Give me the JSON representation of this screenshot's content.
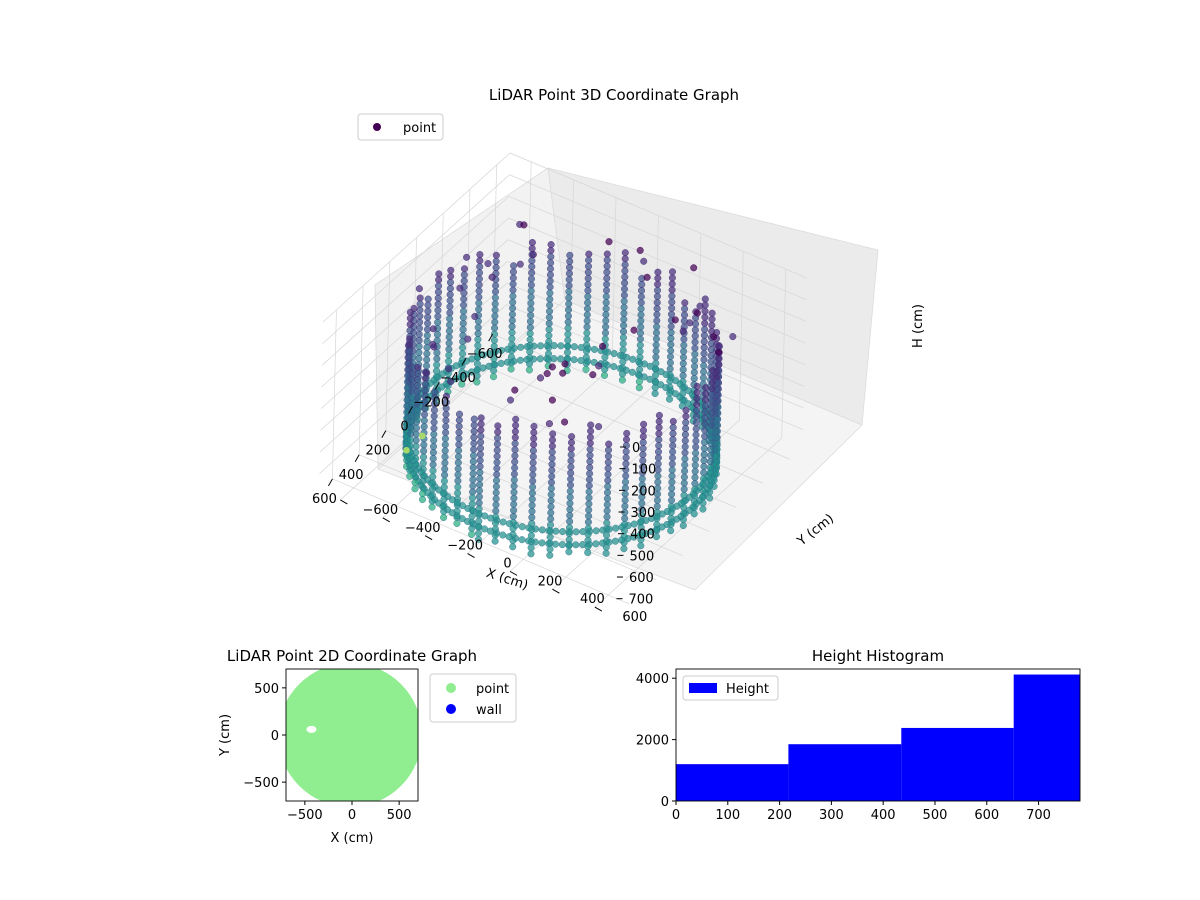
{
  "colors": {
    "viridis_dark": "#440154",
    "viridis_mid": "#3b528b",
    "viridis_teal": "#21918c",
    "viridis_light": "#5ec962",
    "point_2d": "#90ee90",
    "wall_2d": "#0000ff",
    "hist_bar": "#0000ff",
    "pane": "#f2f2f2",
    "grid": "#d0d0d0"
  },
  "chart_data": [
    {
      "type": "scatter",
      "title": "LiDAR Point 3D Coordinate Graph",
      "xlabel": "X (cm)",
      "ylabel": "Y (cm)",
      "zlabel": "H (cm)",
      "x_ticks": [
        "−600",
        "−400",
        "−200",
        "0",
        "200",
        "400",
        "600"
      ],
      "y_ticks": [
        "−600",
        "−400",
        "−200",
        "0",
        "200",
        "400",
        "600"
      ],
      "z_ticks": [
        "0",
        "100",
        "200",
        "300",
        "400",
        "500",
        "600",
        "700"
      ],
      "xlim": [
        -700,
        700
      ],
      "ylim": [
        -700,
        700
      ],
      "zlim": [
        0,
        780
      ],
      "z_axis_inverted": true,
      "colormap": "viridis",
      "legend": {
        "position": "top-left",
        "entries": [
          "point"
        ]
      },
      "series": [
        {
          "name": "point",
          "description_values": {
            "ring_radius_cm": 620,
            "max_height_cm": 780
          }
        }
      ]
    },
    {
      "type": "scatter",
      "title": "LiDAR Point 2D Coordinate Graph",
      "xlabel": "X (cm)",
      "ylabel": "Y (cm)",
      "x_ticks": [
        "−500",
        "0",
        "500"
      ],
      "y_ticks": [
        "500",
        "0",
        "−500"
      ],
      "xlim": [
        -700,
        700
      ],
      "ylim": [
        -700,
        700
      ],
      "legend": {
        "position": "outside-right",
        "entries": [
          "point",
          "wall"
        ]
      },
      "series": [
        {
          "name": "point",
          "color": "#90ee90"
        },
        {
          "name": "wall",
          "color": "#0000ff"
        }
      ]
    },
    {
      "type": "bar",
      "title": "Height Histogram",
      "legend": {
        "position": "top-left",
        "entries": [
          "Height"
        ]
      },
      "bin_edges": [
        0,
        217,
        435,
        652,
        780
      ],
      "values": [
        1200,
        1850,
        2380,
        4120
      ],
      "xlim": [
        0,
        780
      ],
      "ylim": [
        0,
        4300
      ],
      "x_ticks": [
        0,
        100,
        200,
        300,
        400,
        500,
        600,
        700
      ],
      "y_ticks": [
        0,
        2000,
        4000
      ]
    }
  ]
}
